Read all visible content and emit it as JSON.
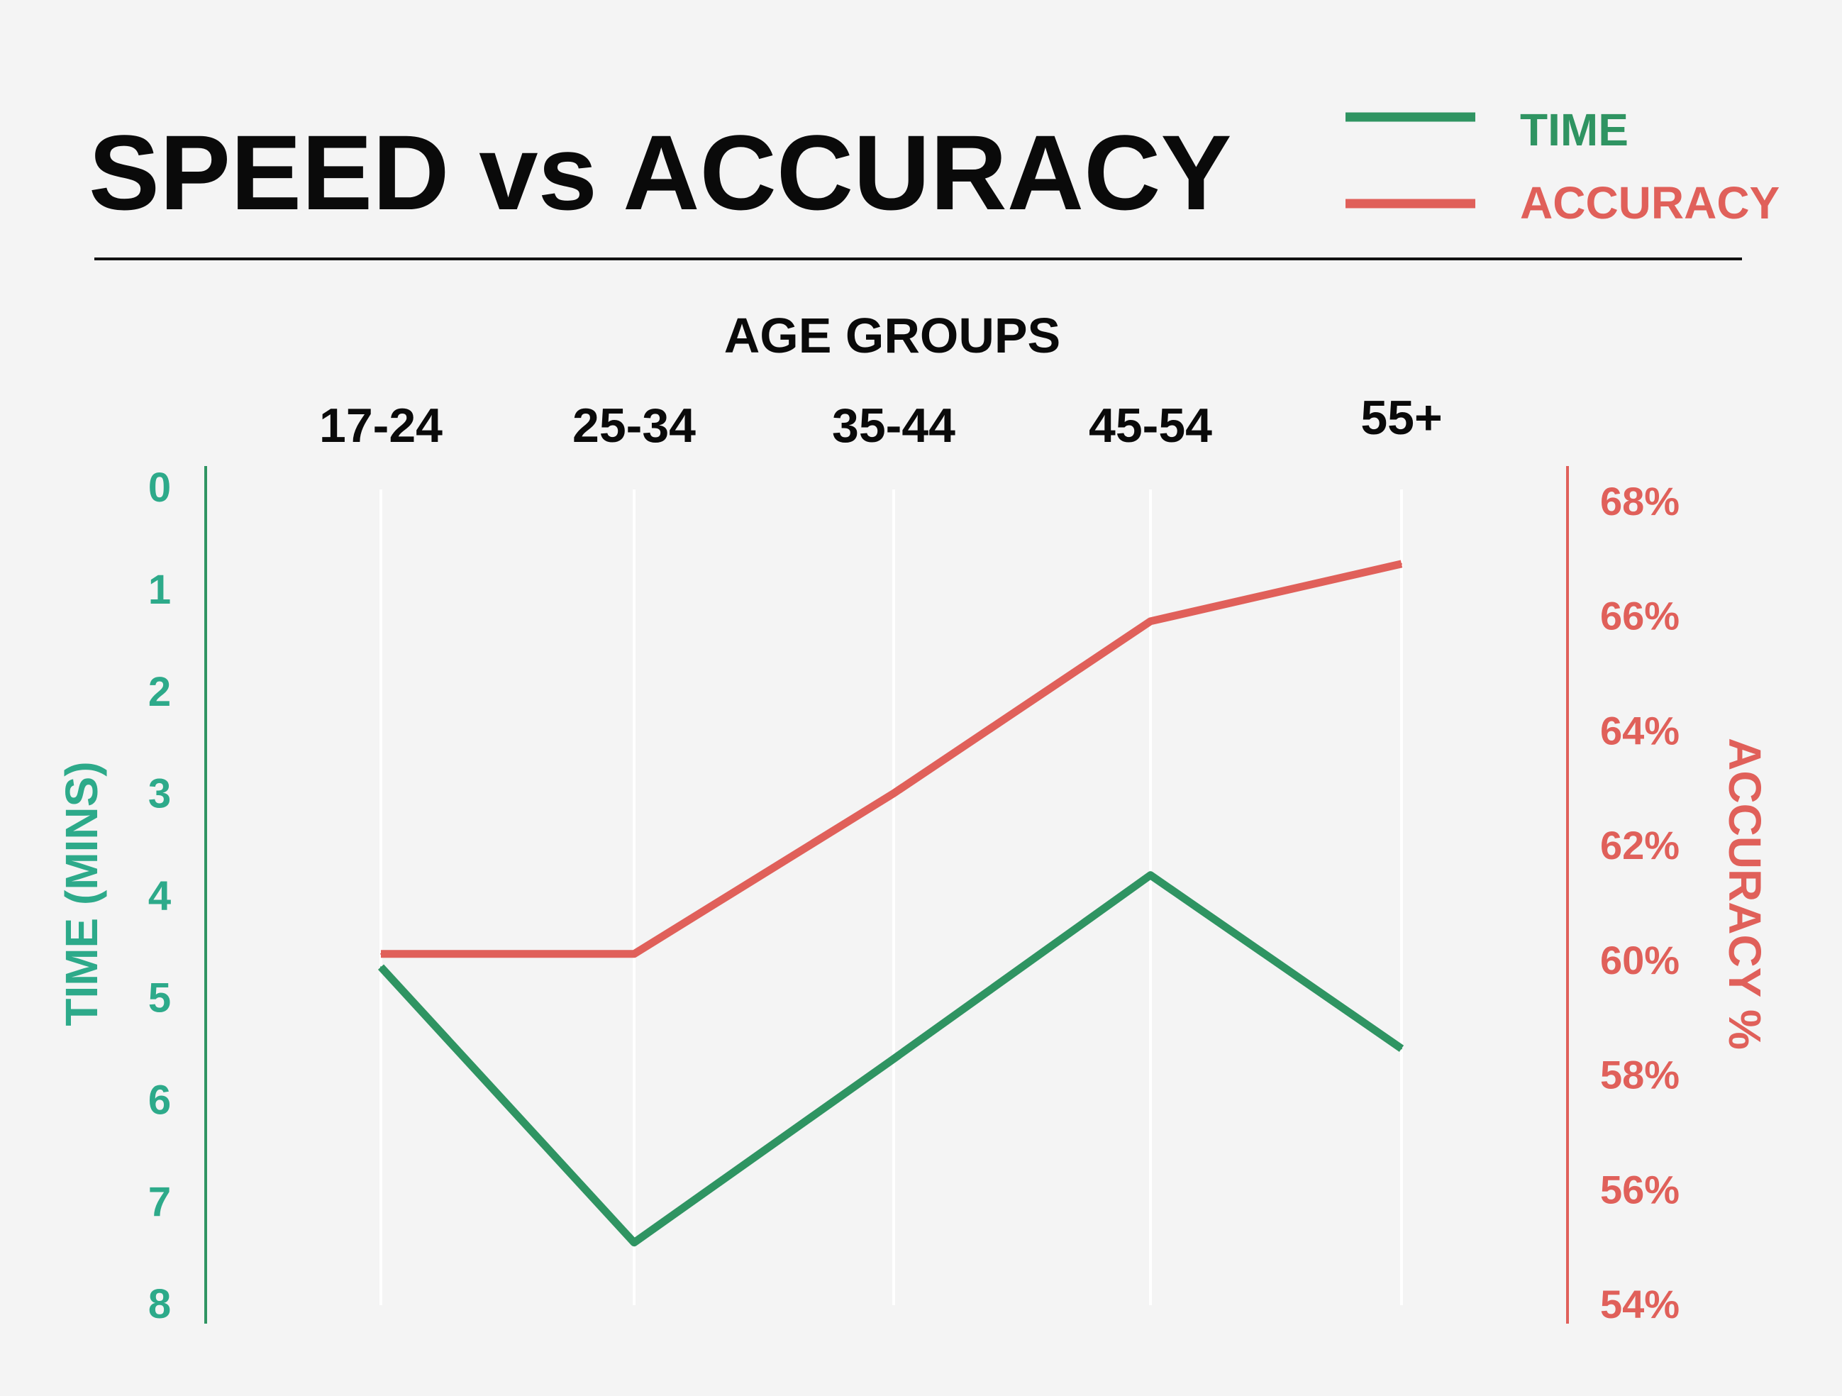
{
  "chart_data": {
    "type": "line",
    "title": "SPEED vs ACCURACY",
    "xlabel": "AGE GROUPS",
    "categories": [
      "17-24",
      "25-34",
      "35-44",
      "45-54",
      "55+"
    ],
    "y_left": {
      "label": "TIME (MINS)",
      "ticks": [
        "0",
        "1",
        "2",
        "3",
        "4",
        "5",
        "6",
        "7",
        "8"
      ],
      "range": [
        0,
        8
      ],
      "inverted": true
    },
    "y_right": {
      "label": "ACCURACY %",
      "ticks": [
        "68%",
        "66%",
        "64%",
        "62%",
        "60%",
        "58%",
        "56%",
        "54%"
      ],
      "range": [
        54,
        68
      ]
    },
    "series": [
      {
        "name": "TIME",
        "axis": "left",
        "color": "#2f9462",
        "values": [
          4.7,
          7.4,
          5.6,
          3.8,
          5.5
        ]
      },
      {
        "name": "ACCURACY",
        "axis": "right",
        "color": "#e0605a",
        "values": [
          60.1,
          60.1,
          62.9,
          65.9,
          66.9
        ]
      }
    ],
    "legend": "top-right",
    "grid": "vertical",
    "colors": {
      "left_axis": "#2f9462",
      "left_ticks": "#2daa8a",
      "right_axis": "#e0605a"
    }
  }
}
